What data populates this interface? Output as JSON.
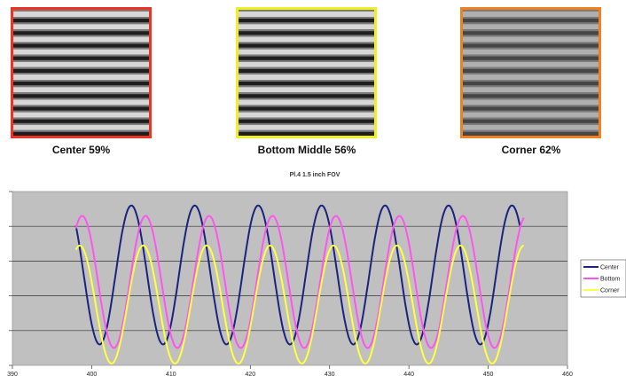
{
  "panels": [
    {
      "id": "center",
      "label": "Center 59%",
      "border_color": "#ee3322",
      "contrast": 0.59
    },
    {
      "id": "bottom",
      "label": "Bottom Middle 56%",
      "border_color": "#f0f020",
      "contrast": 0.56
    },
    {
      "id": "corner",
      "label": "Corner 62%",
      "border_color": "#f08020",
      "contrast": 0.62
    }
  ],
  "chart_data": {
    "type": "line",
    "title": "Pl.4 1.5 inch FOV",
    "xlabel": "",
    "ylabel": "",
    "xlim": [
      390,
      460
    ],
    "xticks": [
      390,
      400,
      410,
      420,
      430,
      440,
      450,
      460
    ],
    "xtick_labels": [
      "390",
      "400",
      "410",
      "420",
      "430",
      "440",
      "450",
      "460"
    ],
    "ylim": [
      0,
      5
    ],
    "grid": "horizontal",
    "plot_background": "#c0c0c0",
    "legend_position": "right",
    "series": [
      {
        "name": "Center",
        "color": "#1a237e",
        "x0": 398,
        "x1": 454,
        "offset": 2.6,
        "amplitude": 2.0,
        "period": 8.0,
        "peak_x": 405.0
      },
      {
        "name": "Bottom",
        "color": "#ff55ee",
        "x0": 398,
        "x1": 454.5,
        "offset": 2.4,
        "amplitude": 1.9,
        "period": 8.0,
        "peak_x": 398.8
      },
      {
        "name": "Corner",
        "color": "#ffff44",
        "x0": 398,
        "x1": 454.5,
        "offset": 1.75,
        "amplitude": 1.7,
        "period": 8.0,
        "peak_x": 398.5
      }
    ]
  }
}
